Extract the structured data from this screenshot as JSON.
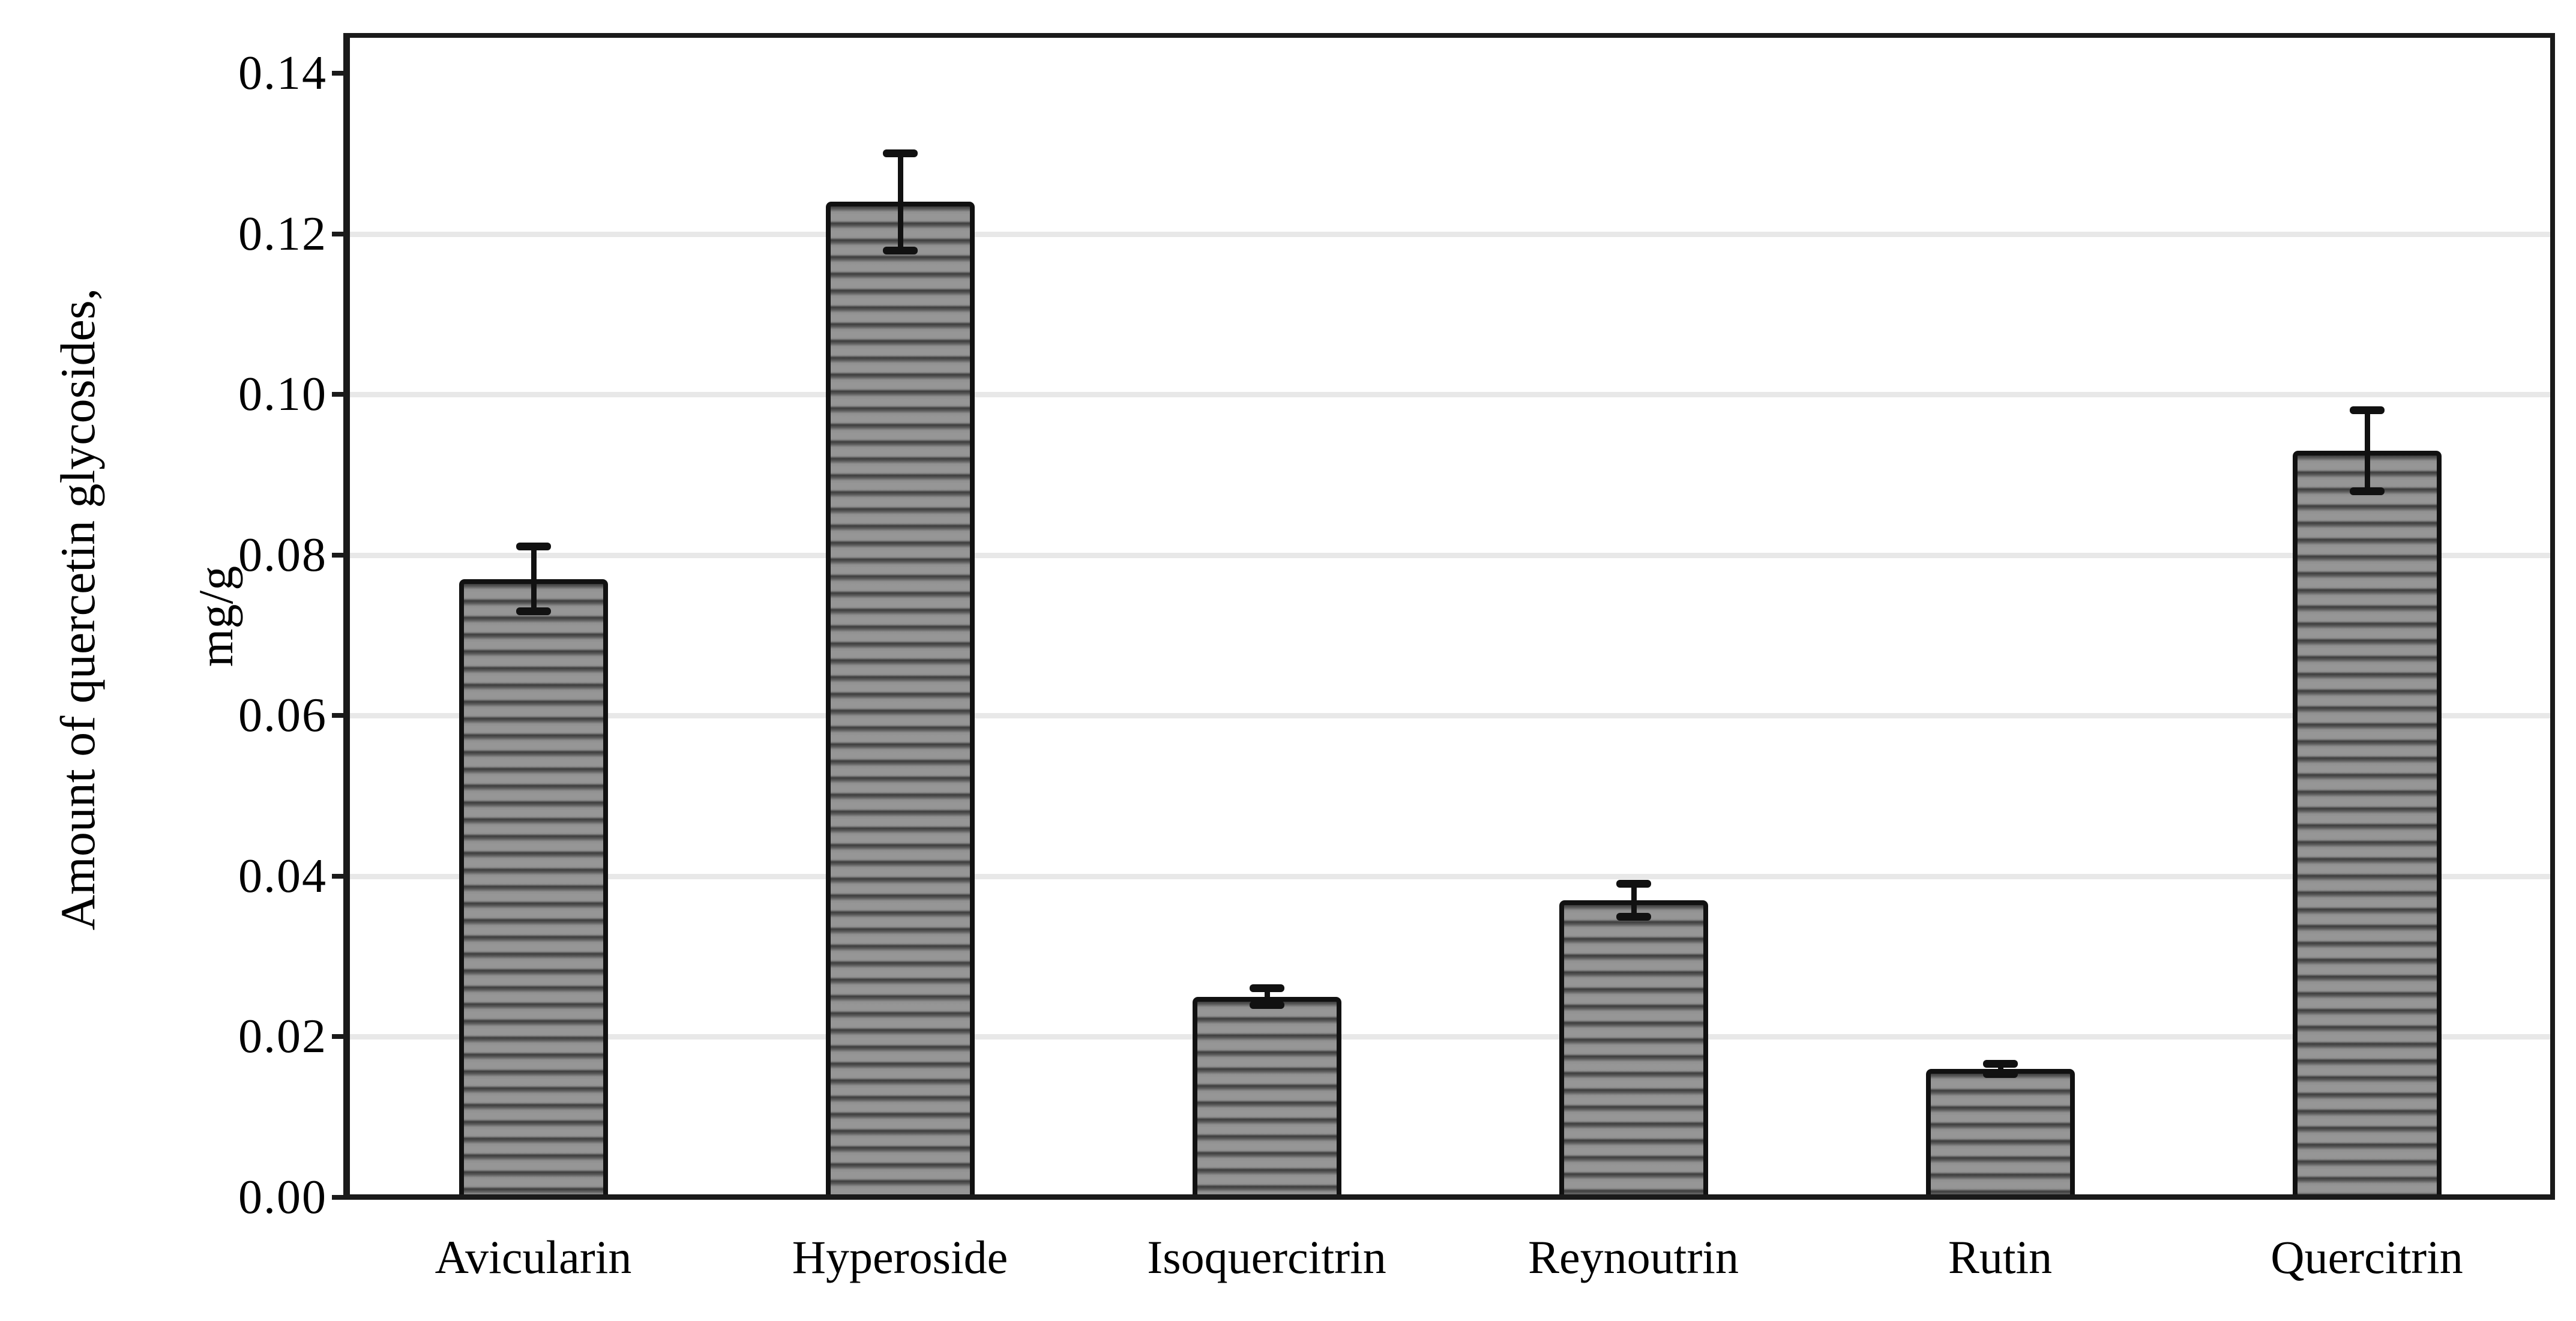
{
  "chart_data": {
    "type": "bar",
    "title": "",
    "categories": [
      "Avicularin",
      "Hyperoside",
      "Isoquercitrin",
      "Reynoutrin",
      "Rutin",
      "Quercitrin"
    ],
    "values": [
      0.077,
      0.124,
      0.025,
      0.037,
      0.016,
      0.093
    ],
    "errors": [
      0.004,
      0.006,
      0.001,
      0.002,
      0.0006,
      0.005
    ],
    "xlabel": "",
    "ylabel": "Amount of quercetin glycosides,",
    "ylabel_unit": "mg/g",
    "ytick_values": [
      0.0,
      0.02,
      0.04,
      0.06,
      0.08,
      0.1,
      0.12,
      0.14
    ],
    "ytick_labels": [
      "0.00",
      "0.02",
      "0.04",
      "0.06",
      "0.08",
      "0.10",
      "0.12",
      "0.14"
    ],
    "grid_tick_values": [
      0.02,
      0.04,
      0.06,
      0.08,
      0.1,
      0.12
    ],
    "ylim": [
      0,
      0.1445
    ],
    "grid": "horizontal",
    "legend": "none",
    "bar_hatch": "horizontal-stripes",
    "error_bars": "plus-minus with caps",
    "colors": {
      "background": "#ffffff",
      "bar_fill_base": "#909090",
      "bar_hatch_stripe": "#3d3d3d",
      "bar_border": "#111111",
      "error_bar": "#111111",
      "gridline": "#e8e8e8",
      "axis_frame": "#1a1a1a",
      "text": "#000000"
    }
  }
}
